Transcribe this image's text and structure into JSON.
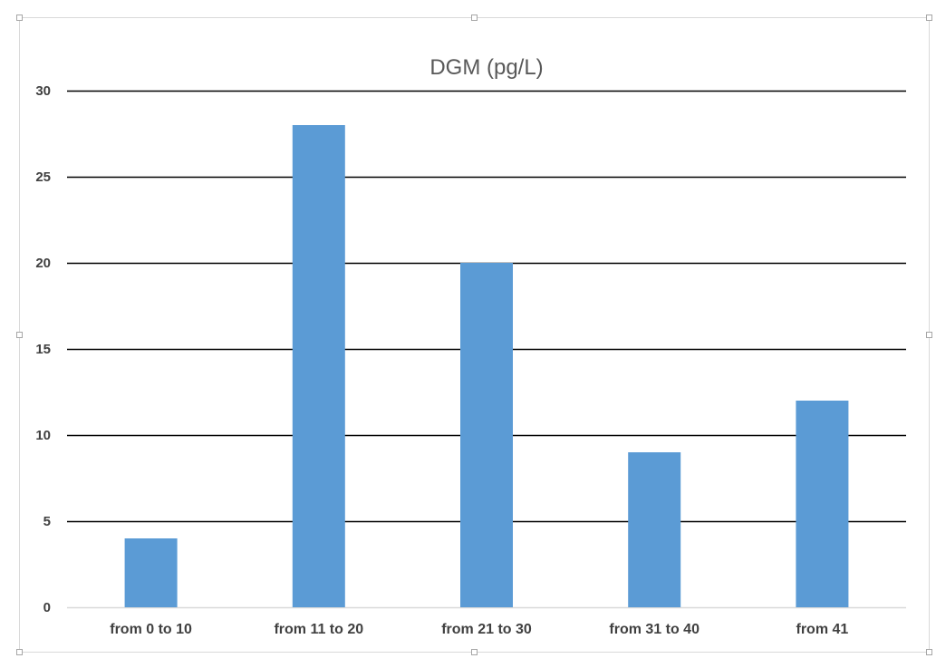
{
  "chart_data": {
    "type": "bar",
    "title": "DGM (pg/L)",
    "xlabel": "",
    "ylabel": "",
    "categories": [
      "from 0 to 10",
      "from 11 to 20",
      "from 21 to 30",
      "from 31 to 40",
      "from 41"
    ],
    "values": [
      4,
      28,
      20,
      9,
      12
    ],
    "ylim": [
      0,
      30
    ],
    "yticks": [
      0,
      5,
      10,
      15,
      20,
      25,
      30
    ],
    "grid": true,
    "legend": "none",
    "bar_color": "#5b9bd5",
    "grid_color": "#000000",
    "axis_color": "#d9d9d9"
  }
}
